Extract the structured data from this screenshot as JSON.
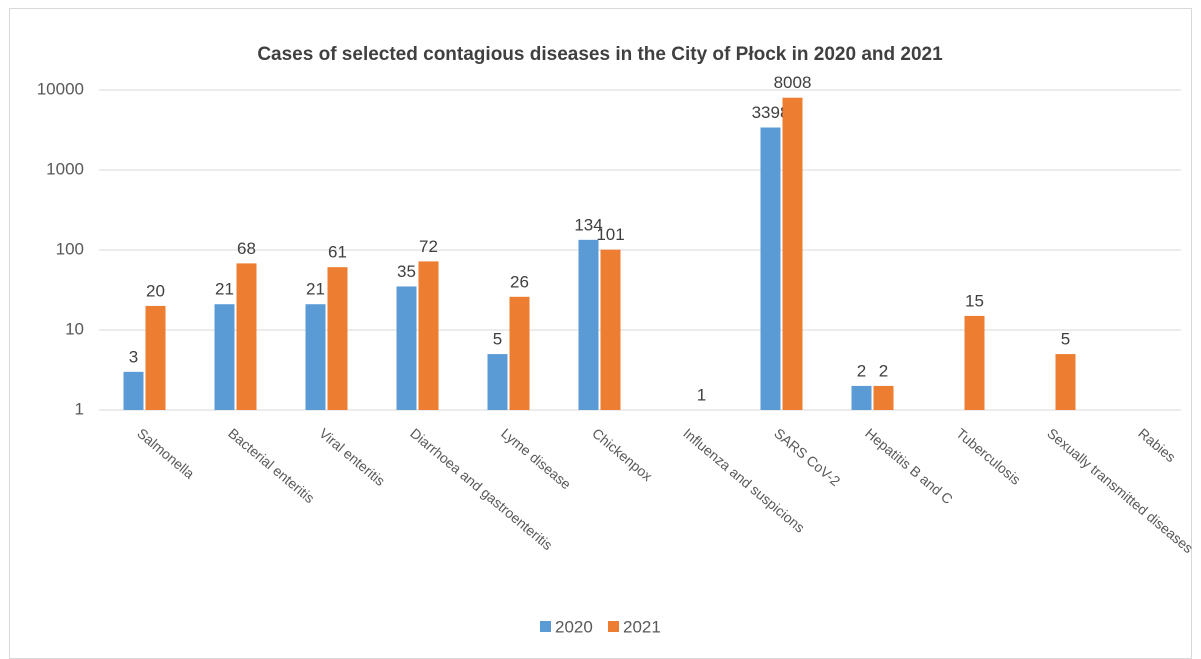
{
  "chart_data": {
    "type": "bar",
    "title": "Cases of selected contagious diseases in the City of Płock in 2020 and 2021",
    "categories": [
      "Salmonella",
      "Bacterial enteritis",
      "Viral enteritis",
      "Diarrhoea and gastroenteritis",
      "Lyme disease",
      "Chickenpox",
      "Influenza and suspicions",
      "SARS CoV-2",
      "Hepatitis B and C",
      "Tuberculosis",
      "Sexually transmitted diseases",
      "Rabies"
    ],
    "series": [
      {
        "name": "2020",
        "color": "#5b9bd5",
        "values": [
          3,
          21,
          21,
          35,
          5,
          134,
          null,
          3398,
          2,
          null,
          null,
          null
        ]
      },
      {
        "name": "2021",
        "color": "#ed7d31",
        "values": [
          20,
          68,
          61,
          72,
          26,
          101,
          1,
          8008,
          2,
          15,
          5,
          null
        ]
      }
    ],
    "ylim": [
      1,
      10000
    ],
    "yticks": [
      1,
      10,
      100,
      1000,
      10000
    ],
    "log_scale": true,
    "grid": true,
    "legend": "bottom"
  }
}
